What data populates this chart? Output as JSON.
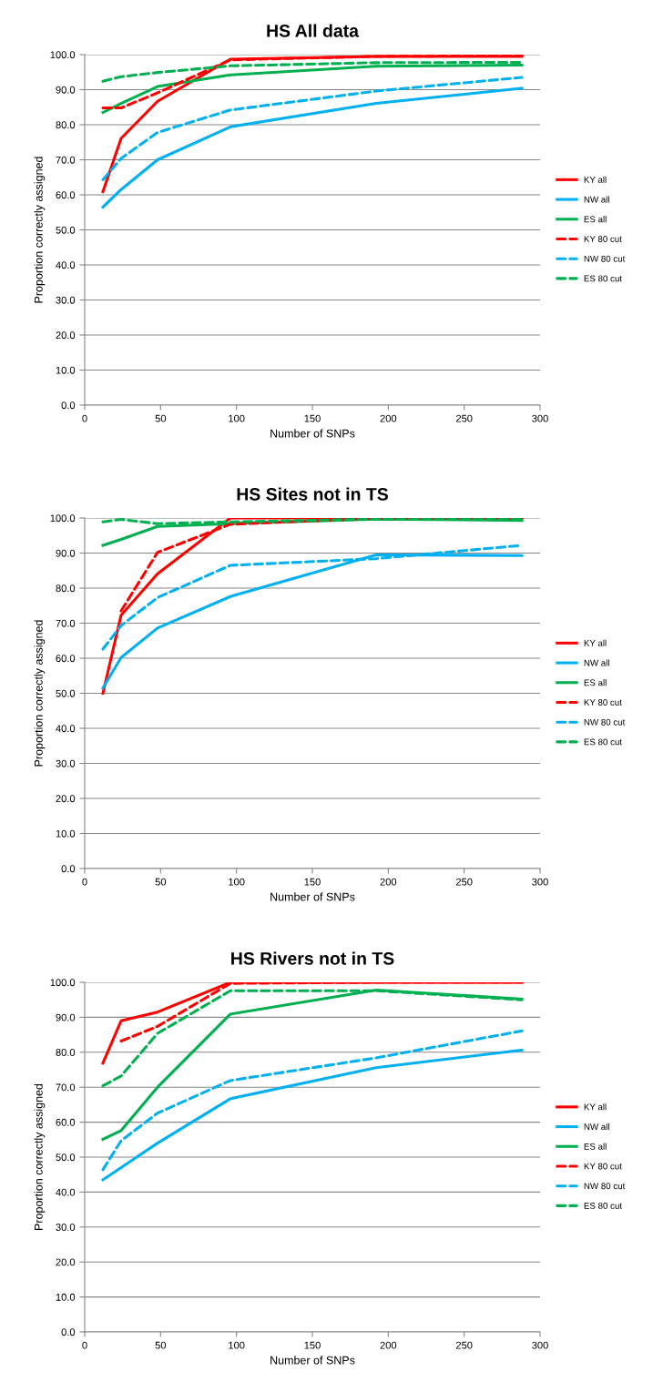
{
  "chart_data": [
    {
      "type": "line",
      "title": "HS All data",
      "xlabel": "Number of SNPs",
      "ylabel": "Proportion correctly assigned",
      "x": [
        12,
        24,
        48,
        96,
        192,
        288
      ],
      "xlim": [
        0,
        300
      ],
      "xticks": [
        0,
        50,
        100,
        150,
        200,
        250,
        300
      ],
      "ylim": [
        0,
        100
      ],
      "yticks": [
        {
          "value": 0,
          "label": "0.0"
        },
        {
          "value": 10,
          "label": "10.0"
        },
        {
          "value": 20,
          "label": "20.0"
        },
        {
          "value": 30,
          "label": "30.0"
        },
        {
          "value": 40,
          "label": "40.0"
        },
        {
          "value": 50,
          "label": "50.0"
        },
        {
          "value": 60,
          "label": "60.0"
        },
        {
          "value": 70,
          "label": "70.0"
        },
        {
          "value": 80,
          "label": "80.0"
        },
        {
          "value": 90,
          "label": "90.0"
        },
        {
          "value": 100,
          "label": "100.0"
        }
      ],
      "grid": "y",
      "legend": "right",
      "series": [
        {
          "name": "KY all",
          "color": "#ff0000",
          "line_style": "solid",
          "values": [
            60.9,
            76.1,
            86.7,
            98.7,
            99.5,
            99.5
          ]
        },
        {
          "name": "NW all",
          "color": "#00b0f0",
          "line_style": "solid",
          "values": [
            56.5,
            61.5,
            70.0,
            79.4,
            86.1,
            90.4
          ]
        },
        {
          "name": "ES all",
          "color": "#00b050",
          "line_style": "solid",
          "values": [
            83.5,
            86.1,
            90.9,
            94.2,
            96.7,
            97.0
          ]
        },
        {
          "name": "KY 80 cut",
          "color": "#ff0000",
          "line_style": "dashed",
          "values": [
            84.8,
            84.8,
            89.1,
            98.5,
            99.5,
            99.7
          ]
        },
        {
          "name": "NW 80 cut",
          "color": "#00b0f0",
          "line_style": "dashed",
          "values": [
            64.3,
            70.4,
            77.8,
            84.2,
            89.6,
            93.5
          ]
        },
        {
          "name": "ES 80 cut",
          "color": "#00b050",
          "line_style": "dashed",
          "values": [
            92.4,
            93.7,
            94.9,
            96.8,
            97.7,
            97.8
          ]
        }
      ]
    },
    {
      "type": "line",
      "title": "HS Sites not in TS",
      "xlabel": "Number of SNPs",
      "ylabel": "Proportion correctly assigned",
      "x": [
        12,
        24,
        48,
        96,
        192,
        288
      ],
      "xlim": [
        0,
        300
      ],
      "xticks": [
        0,
        50,
        100,
        150,
        200,
        250,
        300
      ],
      "ylim": [
        0,
        100
      ],
      "yticks": [
        {
          "value": 0,
          "label": "0.0"
        },
        {
          "value": 10,
          "label": "10.0"
        },
        {
          "value": 20,
          "label": "20.0"
        },
        {
          "value": 30,
          "label": "30.0"
        },
        {
          "value": 40,
          "label": "40.0"
        },
        {
          "value": 50,
          "label": "50.0"
        },
        {
          "value": 60,
          "label": "60.0"
        },
        {
          "value": 70,
          "label": "70.0"
        },
        {
          "value": 80,
          "label": "80.0"
        },
        {
          "value": 90,
          "label": "90.0"
        },
        {
          "value": 100,
          "label": "100.0"
        }
      ],
      "grid": "y",
      "legend": "right",
      "series": [
        {
          "name": "KY all",
          "color": "#ff0000",
          "line_style": "solid",
          "values": [
            50.0,
            72.3,
            84.1,
            100.0,
            100.0,
            100.0
          ]
        },
        {
          "name": "NW all",
          "color": "#00b0f0",
          "line_style": "solid",
          "values": [
            51.5,
            60.2,
            68.6,
            77.6,
            89.5,
            89.3
          ]
        },
        {
          "name": "ES all",
          "color": "#00b050",
          "line_style": "solid",
          "values": [
            92.2,
            93.9,
            97.6,
            98.4,
            99.7,
            99.3
          ]
        },
        {
          "name": "KY 80 cut",
          "color": "#ff0000",
          "line_style": "dashed",
          "values": [
            null,
            73.5,
            90.2,
            98.2,
            100.0,
            100.0
          ]
        },
        {
          "name": "NW 80 cut",
          "color": "#00b0f0",
          "line_style": "dashed",
          "values": [
            62.6,
            69.3,
            77.3,
            86.5,
            88.4,
            92.2
          ]
        },
        {
          "name": "ES 80 cut",
          "color": "#00b050",
          "line_style": "dashed",
          "values": [
            98.9,
            99.6,
            98.4,
            98.9,
            99.7,
            99.7
          ]
        }
      ]
    },
    {
      "type": "line",
      "title": "HS Rivers not in TS",
      "xlabel": "Number of SNPs",
      "ylabel": "Proportion correctly assigned",
      "x": [
        12,
        24,
        48,
        96,
        192,
        288
      ],
      "xlim": [
        0,
        300
      ],
      "xticks": [
        0,
        50,
        100,
        150,
        200,
        250,
        300
      ],
      "ylim": [
        0,
        100
      ],
      "yticks": [
        {
          "value": 0,
          "label": "0.0"
        },
        {
          "value": 10,
          "label": "10.0"
        },
        {
          "value": 20,
          "label": "20.0"
        },
        {
          "value": 30,
          "label": "30.0"
        },
        {
          "value": 40,
          "label": "40.0"
        },
        {
          "value": 50,
          "label": "50.0"
        },
        {
          "value": 60,
          "label": "60.0"
        },
        {
          "value": 70,
          "label": "70.0"
        },
        {
          "value": 80,
          "label": "80.0"
        },
        {
          "value": 90,
          "label": "90.0"
        },
        {
          "value": 100,
          "label": "100.0"
        }
      ],
      "grid": "y",
      "legend": "right",
      "series": [
        {
          "name": "KY all",
          "color": "#ff0000",
          "line_style": "solid",
          "values": [
            76.9,
            89.0,
            91.5,
            100.0,
            100.0,
            100.0
          ]
        },
        {
          "name": "NW all",
          "color": "#00b0f0",
          "line_style": "solid",
          "values": [
            43.5,
            47.0,
            54.0,
            66.7,
            75.6,
            80.6
          ]
        },
        {
          "name": "ES all",
          "color": "#00b050",
          "line_style": "solid",
          "values": [
            55.1,
            57.6,
            70.0,
            90.9,
            97.8,
            95.2
          ]
        },
        {
          "name": "KY 80 cut",
          "color": "#ff0000",
          "line_style": "dashed",
          "values": [
            null,
            83.2,
            87.4,
            99.7,
            100.0,
            100.0
          ]
        },
        {
          "name": "NW 80 cut",
          "color": "#00b0f0",
          "line_style": "dashed",
          "values": [
            46.4,
            54.7,
            62.6,
            71.9,
            78.4,
            86.1
          ]
        },
        {
          "name": "ES 80 cut",
          "color": "#00b050",
          "line_style": "dashed",
          "values": [
            70.4,
            73.2,
            85.4,
            97.6,
            97.6,
            95.0
          ]
        }
      ]
    }
  ]
}
